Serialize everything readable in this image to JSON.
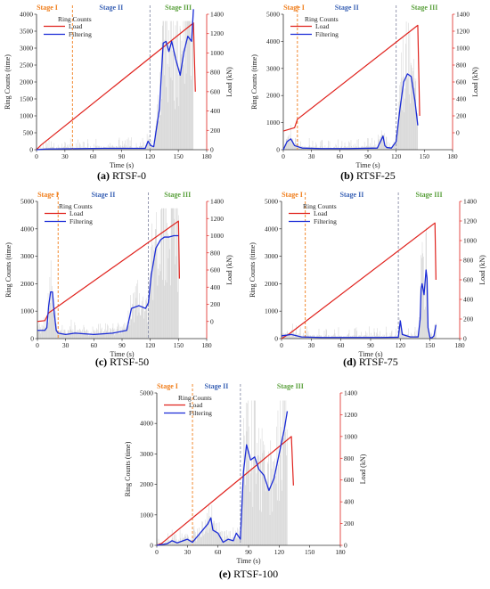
{
  "colors": {
    "load": "#e0231e",
    "filter": "#1a2bd6",
    "raw": "#b8b8b8",
    "stage1": "#f07d1a",
    "stage2": "#3a62b5",
    "stage3": "#5aa03c",
    "boundary_orange": "#f07d1a",
    "boundary_gray": "#8a8fa8",
    "axis": "#333333"
  },
  "chart_data": [
    {
      "id": "a",
      "type": "line",
      "caption_letter": "(a)",
      "caption_text": " RTSF-0",
      "xlabel": "Time (s)",
      "ylabel": "Ring Counts (time)",
      "y2label": "Load (kN)",
      "xlim": [
        0,
        180
      ],
      "xticks": [
        0,
        30,
        60,
        90,
        120,
        150,
        180
      ],
      "ylim": [
        0,
        4000
      ],
      "yticks": [
        0,
        500,
        1000,
        1500,
        2000,
        2500,
        3000,
        3500,
        4000
      ],
      "y2lim": [
        0,
        1400
      ],
      "y2ticks": [
        0,
        200,
        400,
        600,
        800,
        1000,
        1200,
        1400
      ],
      "stages": [
        "Stage I",
        "Stage II",
        "Stage III"
      ],
      "boundaries": [
        38,
        120
      ],
      "legend": {
        "title": "Ring Counts",
        "items": [
          "Load",
          "Filtering"
        ]
      },
      "series": [
        {
          "name": "Load",
          "axis": "right",
          "x": [
            0,
            5,
            166,
            168
          ],
          "y": [
            0,
            50,
            1310,
            600
          ]
        },
        {
          "name": "Filtering",
          "axis": "left",
          "x": [
            0,
            10,
            40,
            70,
            100,
            115,
            118,
            121,
            124,
            130,
            134,
            137,
            140,
            143,
            147,
            152,
            156,
            160,
            164,
            166
          ],
          "y": [
            0,
            20,
            30,
            40,
            40,
            40,
            250,
            120,
            90,
            1200,
            3150,
            3200,
            2900,
            3200,
            2700,
            2200,
            2900,
            3350,
            3200,
            4150
          ]
        }
      ]
    },
    {
      "id": "b",
      "type": "line",
      "caption_letter": "(b)",
      "caption_text": " RTSF-25",
      "xlabel": "Time (s)",
      "ylabel": "Ring Counts (time)",
      "y2label": "Load (kN)",
      "xlim": [
        0,
        180
      ],
      "xticks": [
        0,
        30,
        60,
        90,
        120,
        150,
        180
      ],
      "ylim": [
        0,
        5000
      ],
      "yticks": [
        0,
        1000,
        2000,
        3000,
        4000,
        5000
      ],
      "y2lim": [
        -200,
        1400
      ],
      "y2ticks": [
        0,
        200,
        400,
        600,
        800,
        1000,
        1200,
        1400
      ],
      "stages": [
        "Stage I",
        "Stage II",
        "Stage III"
      ],
      "boundaries": [
        15,
        120
      ],
      "legend": {
        "title": "Ring Counts",
        "items": [
          "Load",
          "Filtering"
        ]
      },
      "series": [
        {
          "name": "Load",
          "axis": "right",
          "x": [
            0,
            12,
            15,
            143,
            145
          ],
          "y": [
            20,
            60,
            160,
            1270,
            200
          ]
        },
        {
          "name": "Filtering",
          "axis": "left",
          "x": [
            0,
            4,
            8,
            12,
            20,
            40,
            70,
            100,
            106,
            108,
            110,
            115,
            120,
            124,
            128,
            132,
            136,
            140,
            143
          ],
          "y": [
            0,
            300,
            400,
            150,
            60,
            40,
            40,
            60,
            500,
            150,
            80,
            60,
            300,
            1500,
            2500,
            2800,
            2700,
            1800,
            900
          ]
        }
      ]
    },
    {
      "id": "c",
      "type": "line",
      "caption_letter": "(c)",
      "caption_text": " RTSF-50",
      "xlabel": "Time (s)",
      "ylabel": "Ring Counts (time)",
      "y2label": "Load (kN)",
      "xlim": [
        0,
        180
      ],
      "xticks": [
        0,
        30,
        60,
        90,
        120,
        150,
        180
      ],
      "ylim": [
        0,
        5000
      ],
      "yticks": [
        0,
        1000,
        2000,
        3000,
        4000,
        5000
      ],
      "y2lim": [
        -200,
        1400
      ],
      "y2ticks": [
        0,
        200,
        400,
        600,
        800,
        1000,
        1200,
        1400
      ],
      "stages": [
        "Stage I",
        "Stage II",
        "Stage III"
      ],
      "boundaries": [
        22,
        118
      ],
      "legend": {
        "title": "Ring Counts",
        "items": [
          "Load",
          "Filtering"
        ]
      },
      "series": [
        {
          "name": "Load",
          "axis": "right",
          "x": [
            0,
            8,
            12,
            150,
            151
          ],
          "y": [
            0,
            10,
            100,
            1170,
            500
          ]
        },
        {
          "name": "Filtering",
          "axis": "left",
          "x": [
            0,
            8,
            10,
            12,
            14,
            16,
            18,
            20,
            22,
            30,
            40,
            60,
            80,
            95,
            100,
            108,
            115,
            118,
            121,
            126,
            131,
            135,
            140,
            145,
            150
          ],
          "y": [
            300,
            300,
            400,
            1200,
            1700,
            1700,
            900,
            300,
            200,
            150,
            200,
            150,
            200,
            300,
            1100,
            1200,
            1100,
            1300,
            2300,
            3300,
            3600,
            3700,
            3700,
            3750,
            3750
          ]
        }
      ]
    },
    {
      "id": "d",
      "type": "line",
      "caption_letter": "(d)",
      "caption_text": " RTSF-75",
      "xlabel": "Time (s)",
      "ylabel": "Ring Counts (time)",
      "y2label": "Load (kN)",
      "xlim": [
        0,
        180
      ],
      "xticks": [
        0,
        30,
        60,
        90,
        120,
        150,
        180
      ],
      "ylim": [
        0,
        5000
      ],
      "yticks": [
        0,
        1000,
        2000,
        3000,
        4000,
        5000
      ],
      "y2lim": [
        0,
        1400
      ],
      "y2ticks": [
        0,
        200,
        400,
        600,
        800,
        1000,
        1200,
        1400
      ],
      "stages": [
        "Stage I",
        "Stage II",
        "Stage III"
      ],
      "boundaries": [
        24,
        118
      ],
      "legend": {
        "title": "Ring Counts",
        "items": [
          "Load",
          "Filtering"
        ]
      },
      "series": [
        {
          "name": "Load",
          "axis": "right",
          "x": [
            0,
            8,
            155,
            156
          ],
          "y": [
            0,
            50,
            1180,
            600
          ]
        },
        {
          "name": "Filtering",
          "axis": "left",
          "x": [
            0,
            10,
            20,
            40,
            70,
            100,
            118,
            120,
            122,
            130,
            138,
            140,
            141,
            142,
            144,
            146,
            147,
            148,
            150,
            152,
            154,
            156
          ],
          "y": [
            100,
            150,
            60,
            40,
            40,
            40,
            50,
            650,
            150,
            60,
            60,
            700,
            1800,
            2000,
            1600,
            2500,
            2200,
            400,
            30,
            30,
            100,
            500
          ]
        }
      ]
    },
    {
      "id": "e",
      "type": "line",
      "caption_letter": "(e)",
      "caption_text": " RTSF-100",
      "xlabel": "Time (s)",
      "ylabel": "Ring Counts (time)",
      "y2label": "Load (kN)",
      "xlim": [
        0,
        180
      ],
      "xticks": [
        0,
        30,
        60,
        90,
        120,
        150,
        180
      ],
      "ylim": [
        0,
        5000
      ],
      "yticks": [
        0,
        1000,
        2000,
        3000,
        4000,
        5000
      ],
      "y2lim": [
        0,
        1400
      ],
      "y2ticks": [
        0,
        200,
        400,
        600,
        800,
        1000,
        1200,
        1400
      ],
      "stages": [
        "Stage I",
        "Stage II",
        "Stage III"
      ],
      "boundaries": [
        35,
        82
      ],
      "legend": {
        "title": "Ring Counts",
        "items": [
          "Load",
          "Filtering"
        ]
      },
      "series": [
        {
          "name": "Load",
          "axis": "right",
          "x": [
            0,
            5,
            132,
            134
          ],
          "y": [
            0,
            20,
            1000,
            550
          ]
        },
        {
          "name": "Filtering",
          "axis": "left",
          "x": [
            0,
            10,
            15,
            20,
            30,
            35,
            40,
            45,
            50,
            53,
            55,
            60,
            65,
            70,
            75,
            78,
            82,
            85,
            88,
            92,
            96,
            100,
            105,
            110,
            115,
            120,
            125,
            128
          ],
          "y": [
            0,
            50,
            150,
            80,
            200,
            100,
            300,
            500,
            700,
            900,
            500,
            400,
            100,
            200,
            150,
            400,
            200,
            2400,
            3300,
            2800,
            2900,
            2500,
            2300,
            1800,
            2200,
            3000,
            3800,
            4400
          ]
        }
      ]
    }
  ]
}
